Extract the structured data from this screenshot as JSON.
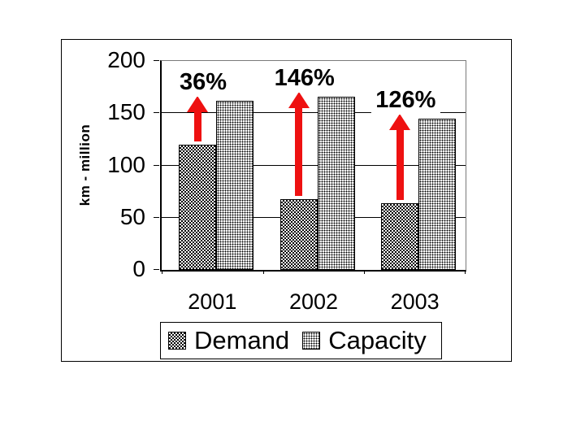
{
  "colors": {
    "arrow_red": "#ee1111",
    "axis": "#000000",
    "background": "#ffffff"
  },
  "chart_data": {
    "type": "bar",
    "categories": [
      "2001",
      "2002",
      "2003"
    ],
    "series": [
      {
        "name": "Demand",
        "pattern": "demand",
        "values": [
          120,
          68,
          64
        ]
      },
      {
        "name": "Capacity",
        "pattern": "capacity",
        "values": [
          162,
          166,
          145
        ]
      }
    ],
    "annotations": [
      "36%",
      "146%",
      "126%"
    ],
    "title": "",
    "xlabel": "",
    "ylabel": "km - million",
    "yticks": [
      0,
      50,
      100,
      150,
      200
    ],
    "ylim": [
      0,
      200
    ],
    "grid": true,
    "legend_position": "bottom",
    "arrow_color": "#ee1111"
  }
}
